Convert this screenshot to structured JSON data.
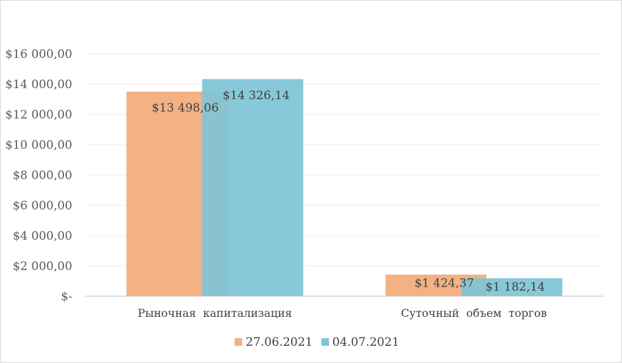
{
  "chart_data": {
    "type": "bar",
    "categories": [
      "Рыночная  капитализация",
      "Суточный  объем  торгов"
    ],
    "series": [
      {
        "name": "27.06.2021",
        "values": [
          13498.06,
          1424.37
        ],
        "labels": [
          "$13 498,06",
          "$1 424,37"
        ]
      },
      {
        "name": "04.07.2021",
        "values": [
          14326.14,
          1182.14
        ],
        "labels": [
          "$14 326,14",
          "$1 182,14"
        ]
      }
    ],
    "ylim": [
      0,
      16000
    ],
    "yticks": [
      0,
      2000,
      4000,
      6000,
      8000,
      10000,
      12000,
      14000,
      16000
    ],
    "ytick_labels": [
      "$-",
      "$2 000,00",
      "$4 000,00",
      "$6 000,00",
      "$8 000,00",
      "$10 000,00",
      "$12 000,00",
      "$14 000,00",
      "$16 000,00"
    ],
    "grid": true,
    "legend_position": "bottom",
    "colors": [
      "#f4b183",
      "#7ec4d6"
    ],
    "title": "",
    "xlabel": "",
    "ylabel": ""
  }
}
